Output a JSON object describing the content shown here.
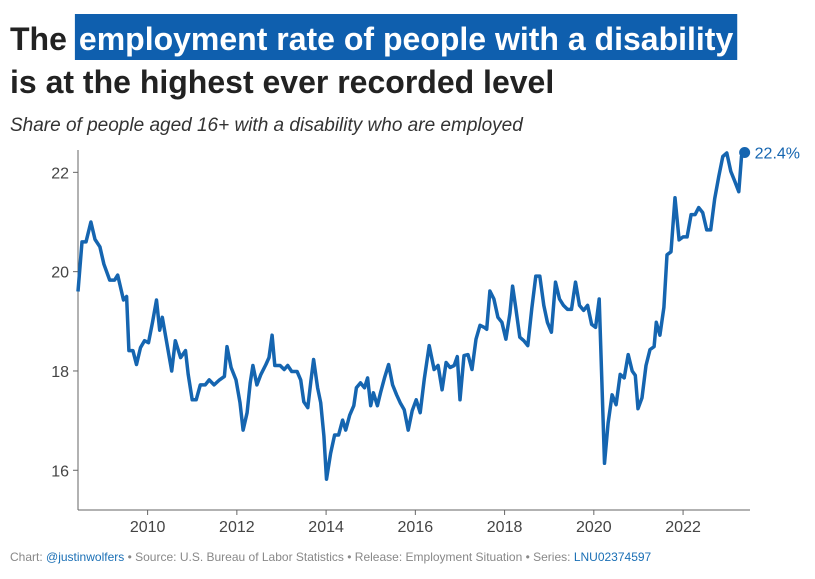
{
  "chart_data": {
    "type": "line",
    "title": [
      "The",
      "employment rate of people with a disability",
      "is at the highest ever recorded level"
    ],
    "subtitle": "Share of people aged 16+ with a disability who are employed",
    "annotation": "22.4%",
    "footer": [
      {
        "label": "Chart:",
        "text": "@justinwolfers",
        "link": true
      },
      {
        "label": "Source:",
        "text": "U.S. Bureau of Labor Statistics",
        "link": false
      },
      {
        "label": "Release:",
        "text": "Employment Situation",
        "link": false
      },
      {
        "label": "Series:",
        "text": "LNU02374597",
        "link": true
      }
    ],
    "xlim": [
      2008.44,
      2023.5
    ],
    "xticks": [
      2010,
      2012,
      2014,
      2016,
      2018,
      2020,
      2022
    ],
    "ylim": [
      15.2,
      22.45
    ],
    "yticks": [
      16,
      18,
      20,
      22
    ],
    "grid": false,
    "x": [
      2008.44,
      2008.53,
      2008.62,
      2008.73,
      2008.82,
      2008.93,
      2009.02,
      2009.15,
      2009.26,
      2009.33,
      2009.46,
      2009.53,
      2009.58,
      2009.67,
      2009.75,
      2009.84,
      2009.93,
      2010.02,
      2010.11,
      2010.2,
      2010.27,
      2010.33,
      2010.42,
      2010.54,
      2010.62,
      2010.74,
      2010.85,
      2010.91,
      2011.0,
      2011.09,
      2011.18,
      2011.29,
      2011.38,
      2011.49,
      2011.61,
      2011.72,
      2011.78,
      2011.87,
      2011.98,
      2012.07,
      2012.14,
      2012.23,
      2012.3,
      2012.36,
      2012.45,
      2012.54,
      2012.65,
      2012.72,
      2012.79,
      2012.85,
      2012.97,
      2013.06,
      2013.14,
      2013.23,
      2013.35,
      2013.43,
      2013.5,
      2013.59,
      2013.66,
      2013.72,
      2013.81,
      2013.88,
      2013.95,
      2014.01,
      2014.1,
      2014.19,
      2014.28,
      2014.37,
      2014.44,
      2014.53,
      2014.62,
      2014.68,
      2014.77,
      2014.86,
      2014.93,
      2015.0,
      2015.06,
      2015.15,
      2015.22,
      2015.31,
      2015.4,
      2015.49,
      2015.58,
      2015.66,
      2015.75,
      2015.84,
      2015.93,
      2016.02,
      2016.11,
      2016.2,
      2016.31,
      2016.42,
      2016.51,
      2016.6,
      2016.69,
      2016.78,
      2016.87,
      2016.94,
      2017.0,
      2017.09,
      2017.18,
      2017.27,
      2017.36,
      2017.45,
      2017.54,
      2017.6,
      2017.67,
      2017.76,
      2017.85,
      2017.94,
      2018.03,
      2018.12,
      2018.18,
      2018.25,
      2018.34,
      2018.43,
      2018.52,
      2018.61,
      2018.7,
      2018.79,
      2018.88,
      2018.96,
      2019.05,
      2019.14,
      2019.23,
      2019.32,
      2019.41,
      2019.5,
      2019.59,
      2019.68,
      2019.77,
      2019.86,
      2019.95,
      2020.04,
      2020.12,
      2020.24,
      2020.32,
      2020.41,
      2020.5,
      2020.59,
      2020.68,
      2020.77,
      2020.86,
      2020.93,
      2020.99,
      2021.08,
      2021.17,
      2021.26,
      2021.35,
      2021.4,
      2021.48,
      2021.57,
      2021.64,
      2021.73,
      2021.82,
      2021.91,
      2022.0,
      2022.09,
      2022.18,
      2022.27,
      2022.35,
      2022.44,
      2022.53,
      2022.62,
      2022.71,
      2022.8,
      2022.89,
      2022.98,
      2023.07,
      2023.16,
      2023.25,
      2023.31,
      2023.38
    ],
    "series": [
      {
        "name": "Employment rate",
        "color": "#1565b0",
        "values": [
          19.6,
          20.6,
          20.6,
          21.0,
          20.65,
          20.5,
          20.15,
          19.83,
          19.83,
          19.93,
          19.43,
          19.5,
          18.41,
          18.41,
          18.13,
          18.47,
          18.61,
          18.57,
          18.98,
          19.43,
          18.82,
          19.08,
          18.61,
          18.0,
          18.61,
          18.27,
          18.41,
          17.93,
          17.42,
          17.42,
          17.72,
          17.72,
          17.82,
          17.72,
          17.82,
          17.89,
          18.49,
          18.07,
          17.82,
          17.36,
          16.81,
          17.16,
          17.76,
          18.11,
          17.72,
          17.93,
          18.13,
          18.27,
          18.72,
          18.11,
          18.11,
          18.03,
          18.11,
          17.99,
          17.99,
          17.82,
          17.38,
          17.26,
          17.8,
          18.23,
          17.66,
          17.36,
          16.69,
          15.82,
          16.34,
          16.71,
          16.71,
          17.01,
          16.81,
          17.11,
          17.3,
          17.66,
          17.76,
          17.66,
          17.86,
          17.3,
          17.56,
          17.3,
          17.56,
          17.86,
          18.13,
          17.72,
          17.52,
          17.36,
          17.22,
          16.81,
          17.2,
          17.42,
          17.16,
          17.84,
          18.51,
          18.03,
          18.11,
          17.62,
          18.17,
          18.07,
          18.11,
          18.29,
          17.42,
          18.31,
          18.33,
          18.03,
          18.64,
          18.92,
          18.88,
          18.84,
          19.61,
          19.45,
          19.08,
          18.98,
          18.64,
          19.16,
          19.71,
          19.28,
          18.68,
          18.61,
          18.51,
          19.26,
          19.91,
          19.91,
          19.32,
          18.98,
          18.78,
          19.79,
          19.45,
          19.32,
          19.24,
          19.24,
          19.79,
          19.32,
          19.22,
          19.32,
          18.94,
          18.88,
          19.45,
          16.14,
          16.95,
          17.52,
          17.32,
          17.93,
          17.86,
          18.33,
          18.0,
          17.91,
          17.24,
          17.46,
          18.11,
          18.43,
          18.49,
          18.98,
          18.72,
          19.28,
          20.34,
          20.4,
          21.49,
          20.64,
          20.7,
          20.7,
          21.15,
          21.15,
          21.29,
          21.19,
          20.84,
          20.84,
          21.47,
          21.92,
          22.32,
          22.39,
          22.02,
          21.82,
          21.61,
          22.32,
          22.4
        ]
      }
    ]
  }
}
